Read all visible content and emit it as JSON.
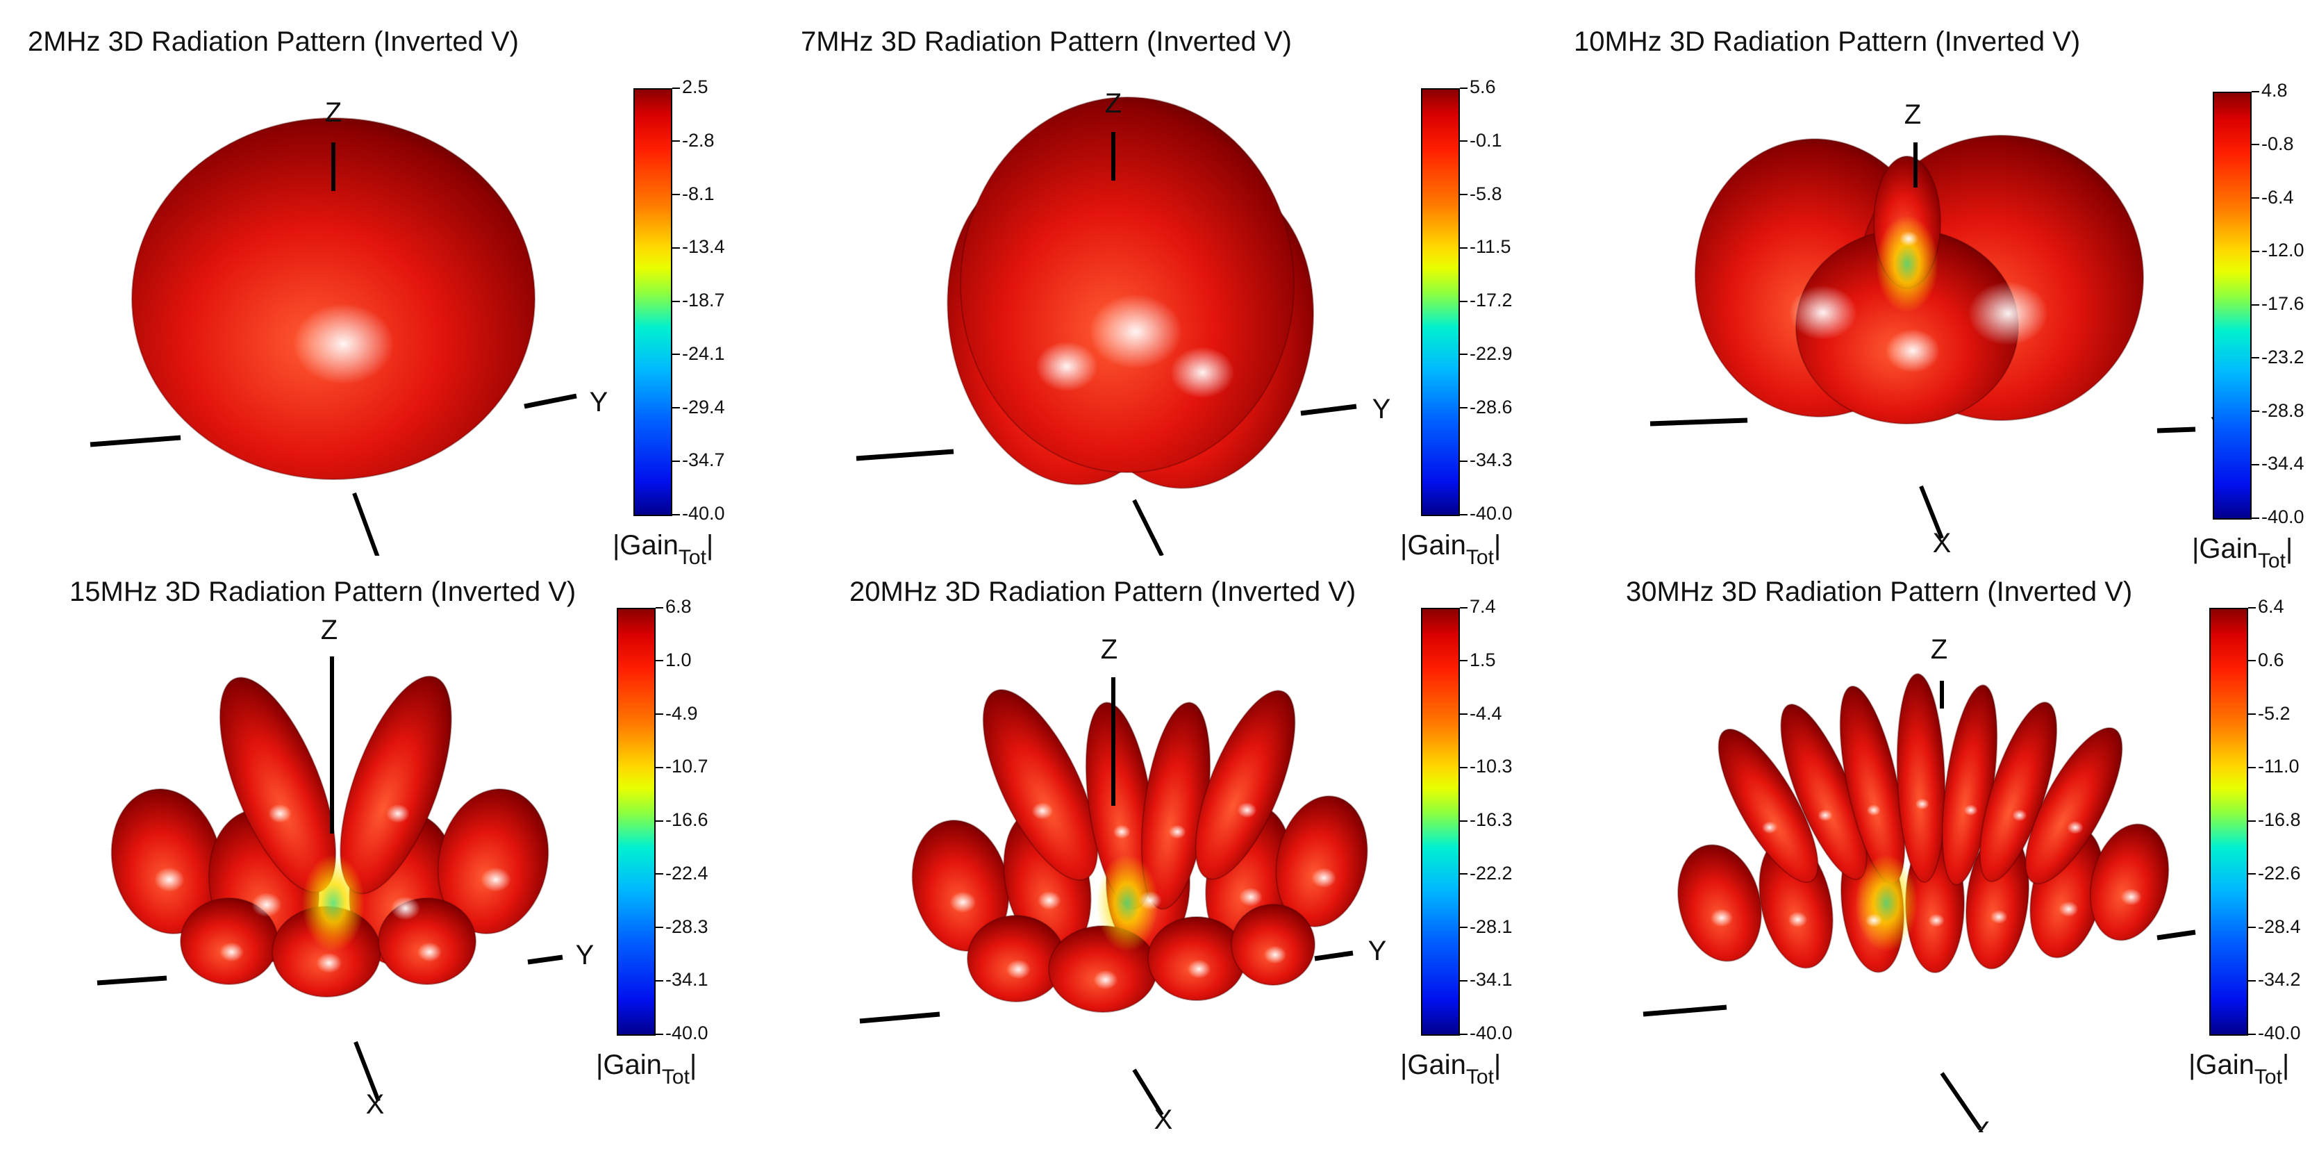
{
  "figure": {
    "colorbar_label_main": "|Gain",
    "colorbar_label_sub": "Tot",
    "colorbar_label_end": "|",
    "axis_labels": {
      "x": "X",
      "y": "Y",
      "z": "Z"
    },
    "colors": {
      "lobe_light": "#ff5a32",
      "lobe_mid": "#e3140c",
      "lobe_dark": "#8a0000",
      "shadow": "#4a0000",
      "highlight": "#ffffff",
      "null_yellow": "#ffe000",
      "null_green": "#58e070"
    }
  },
  "chart_data": [
    {
      "type": "3d-surface",
      "title": "2MHz 3D Radiation Pattern (Inverted V)",
      "frequency": "2MHz",
      "colorbar_label": "|Gain Tot|",
      "colorbar_ticks": [
        "2.5",
        "-2.8",
        "-8.1",
        "-13.4",
        "-18.7",
        "-24.1",
        "-29.4",
        "-34.7",
        "-40.0"
      ],
      "colorbar_range": [
        -40.0,
        2.5
      ]
    },
    {
      "type": "3d-surface",
      "title": "7MHz 3D Radiation Pattern (Inverted V)",
      "frequency": "7MHz",
      "colorbar_label": "|Gain Tot|",
      "colorbar_ticks": [
        "5.6",
        "-0.1",
        "-5.8",
        "-11.5",
        "-17.2",
        "-22.9",
        "-28.6",
        "-34.3",
        "-40.0"
      ],
      "colorbar_range": [
        -40.0,
        5.6
      ]
    },
    {
      "type": "3d-surface",
      "title": "10MHz 3D Radiation Pattern (Inverted V)",
      "frequency": "10MHz",
      "colorbar_label": "|Gain Tot|",
      "colorbar_ticks": [
        "4.8",
        "-0.8",
        "-6.4",
        "-12.0",
        "-17.6",
        "-23.2",
        "-28.8",
        "-34.4",
        "-40.0"
      ],
      "colorbar_range": [
        -40.0,
        4.8
      ]
    },
    {
      "type": "3d-surface",
      "title": "15MHz 3D Radiation Pattern (Inverted V)",
      "frequency": "15MHz",
      "colorbar_label": "|Gain Tot|",
      "colorbar_ticks": [
        "6.8",
        "1.0",
        "-4.9",
        "-10.7",
        "-16.6",
        "-22.4",
        "-28.3",
        "-34.1",
        "-40.0"
      ],
      "colorbar_range": [
        -40.0,
        6.8
      ]
    },
    {
      "type": "3d-surface",
      "title": "20MHz 3D Radiation Pattern (Inverted V)",
      "frequency": "20MHz",
      "colorbar_label": "|Gain Tot|",
      "colorbar_ticks": [
        "7.4",
        "1.5",
        "-4.4",
        "-10.3",
        "-16.3",
        "-22.2",
        "-28.1",
        "-34.1",
        "-40.0"
      ],
      "colorbar_range": [
        -40.0,
        7.4
      ]
    },
    {
      "type": "3d-surface",
      "title": "30MHz 3D Radiation Pattern (Inverted V)",
      "frequency": "30MHz",
      "colorbar_label": "|Gain Tot|",
      "colorbar_ticks": [
        "6.4",
        "0.6",
        "-5.2",
        "-11.0",
        "-16.8",
        "-22.6",
        "-28.4",
        "-34.2",
        "-40.0"
      ],
      "colorbar_range": [
        -40.0,
        6.4
      ]
    }
  ]
}
